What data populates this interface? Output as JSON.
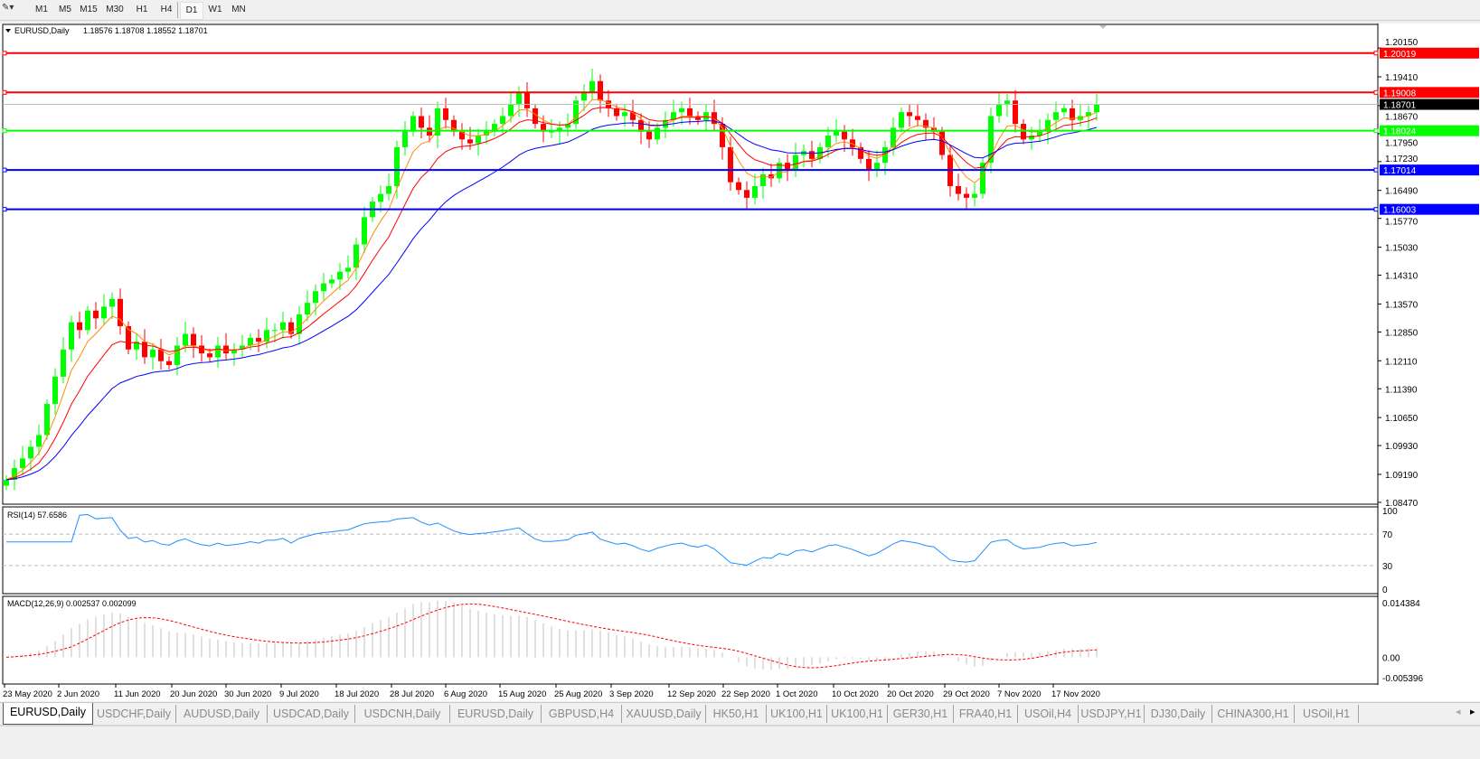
{
  "toolbar": {
    "timeframes": [
      "M1",
      "M5",
      "M15",
      "M30",
      "H1",
      "H4",
      "D1",
      "W1",
      "MN"
    ],
    "active": "D1"
  },
  "chart": {
    "header": "EURUSD,Daily",
    "ohlc": "1.18576 1.18708 1.18552 1.18701",
    "price_ticks": [
      "1.20150",
      "1.19410",
      "1.18670",
      "1.17950",
      "1.17230",
      "1.16490",
      "1.15770",
      "1.15030",
      "1.14310",
      "1.13570",
      "1.12850",
      "1.12110",
      "1.11390",
      "1.10650",
      "1.09930",
      "1.09190",
      "1.08470"
    ],
    "hlines": [
      {
        "price": 1.20019,
        "label": "1.20019",
        "color": "#ff0000"
      },
      {
        "price": 1.19008,
        "label": "1.19008",
        "color": "#ff0000"
      },
      {
        "price": 1.18024,
        "label": "1.18024",
        "color": "#00ff00"
      },
      {
        "price": 1.17014,
        "label": "1.17014",
        "color": "#0000ff"
      },
      {
        "price": 1.16003,
        "label": "1.16003",
        "color": "#0000ff"
      }
    ],
    "current_price": {
      "price": 1.18701,
      "label": "1.18701"
    },
    "colors": {
      "bull": "#00ff00",
      "bear": "#ff0000",
      "ma_fast": "#ff8c00",
      "ma_mid": "#ff0000",
      "ma_slow": "#0000ff",
      "rsi": "#1e90ff",
      "macd_signal": "#ff0000",
      "macd_hist": "#c0c0c0"
    },
    "date_labels": [
      "23 May 2020",
      "2 Jun 2020",
      "11 Jun 2020",
      "20 Jun 2020",
      "30 Jun 2020",
      "9 Jul 2020",
      "18 Jul 2020",
      "28 Jul 2020",
      "6 Aug 2020",
      "15 Aug 2020",
      "25 Aug 2020",
      "3 Sep 2020",
      "12 Sep 2020",
      "22 Sep 2020",
      "1 Oct 2020",
      "10 Oct 2020",
      "20 Oct 2020",
      "29 Oct 2020",
      "7 Nov 2020",
      "17 Nov 2020"
    ]
  },
  "rsi": {
    "label": "RSI(14) 57.6586",
    "ticks": [
      "100",
      "70",
      "30",
      "0"
    ],
    "levels": [
      70,
      30
    ]
  },
  "macd": {
    "label": "MACD(12,26,9) 0.002537 0.002099",
    "ticks": [
      "0.014384",
      "0.00",
      "-0.005396"
    ],
    "max": 0.014384,
    "min": -0.005396
  },
  "chart_data": {
    "type": "candlestick",
    "title": "EURUSD,Daily",
    "first_open": 1.089,
    "close": [
      1.0905,
      1.0935,
      1.096,
      1.099,
      1.102,
      1.11,
      1.117,
      1.124,
      1.131,
      1.129,
      1.134,
      1.132,
      1.135,
      1.137,
      1.13,
      1.124,
      1.126,
      1.122,
      1.124,
      1.121,
      1.12,
      1.125,
      1.128,
      1.125,
      1.123,
      1.122,
      1.125,
      1.123,
      1.124,
      1.125,
      1.127,
      1.126,
      1.129,
      1.129,
      1.131,
      1.128,
      1.133,
      1.136,
      1.139,
      1.141,
      1.142,
      1.144,
      1.145,
      1.151,
      1.158,
      1.162,
      1.164,
      1.166,
      1.176,
      1.18,
      1.184,
      1.181,
      1.179,
      1.186,
      1.183,
      1.18,
      1.178,
      1.177,
      1.179,
      1.18,
      1.182,
      1.184,
      1.187,
      1.19,
      1.186,
      1.182,
      1.18,
      1.18,
      1.181,
      1.182,
      1.188,
      1.19,
      1.193,
      1.188,
      1.186,
      1.184,
      1.185,
      1.183,
      1.18,
      1.178,
      1.181,
      1.183,
      1.185,
      1.186,
      1.184,
      1.183,
      1.185,
      1.182,
      1.176,
      1.167,
      1.165,
      1.163,
      1.166,
      1.169,
      1.168,
      1.172,
      1.17,
      1.174,
      1.175,
      1.173,
      1.176,
      1.179,
      1.18,
      1.178,
      1.176,
      1.173,
      1.17,
      1.172,
      1.176,
      1.181,
      1.185,
      1.184,
      1.183,
      1.181,
      1.18,
      1.174,
      1.166,
      1.164,
      1.163,
      1.164,
      1.172,
      1.184,
      1.187,
      1.188,
      1.182,
      1.178,
      1.179,
      1.18,
      1.183,
      1.185,
      1.186,
      1.183,
      1.184,
      1.185,
      1.18701
    ],
    "ylim": [
      1.0847,
      1.2015
    ]
  },
  "tabs": [
    "EURUSD,Daily",
    "USDCHF,Daily",
    "AUDUSD,Daily",
    "USDCAD,Daily",
    "USDCNH,Daily",
    "EURUSD,Daily",
    "GBPUSD,H4",
    "XAUUSD,Daily",
    "HK50,H1",
    "UK100,H1",
    "UK100,H1",
    "GER30,H1",
    "FRA40,H1",
    "USOil,H4",
    "USDJPY,H1",
    "DJ30,Daily",
    "CHINA300,H1",
    "USOil,H1"
  ],
  "active_tab": 0
}
